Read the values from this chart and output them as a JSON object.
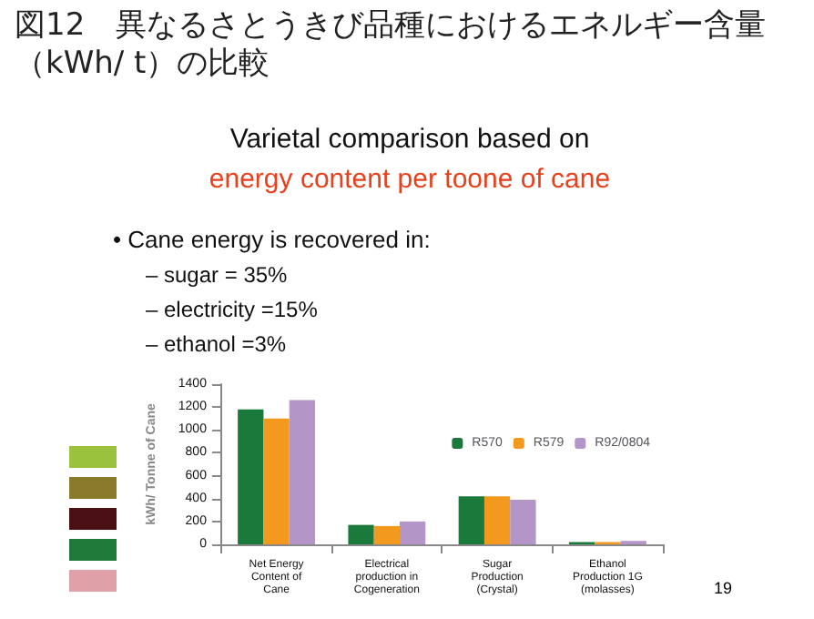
{
  "chart_data": {
    "type": "bar",
    "title": "図12　異なるさとうきび品種におけるエネルギー含量（kWh/ t）の比較",
    "subtitle": "Varietal comparison based on\nenergy content per toone of cane",
    "ylabel": "kWh/ Tonne of Cane",
    "annotations": [
      "• Cane energy is recovered in:",
      "– sugar = 35%",
      "– electricity =15%",
      "– ethanol =3%",
      "19"
    ],
    "categories": [
      "Net Energy\nContent of\nCane",
      "Electrical\nproduction in\nCogeneration",
      "Sugar\nProduction\n(Crystal)",
      "Ethanol\nProduction 1G\n(molasses)"
    ],
    "series": [
      {
        "name": "R570",
        "color": "#1a7a3c",
        "values": [
          1180,
          170,
          420,
          20
        ]
      },
      {
        "name": "R579",
        "color": "#f39a1e",
        "values": [
          1100,
          160,
          420,
          20
        ]
      },
      {
        "name": "R92/0804",
        "color": "#b395c8",
        "values": [
          1260,
          200,
          390,
          30
        ]
      }
    ],
    "ylim": [
      0,
      1400
    ],
    "yticks": [
      0,
      200,
      400,
      600,
      800,
      1000,
      1200,
      1400
    ],
    "grid": false,
    "legend": "top right"
  }
}
